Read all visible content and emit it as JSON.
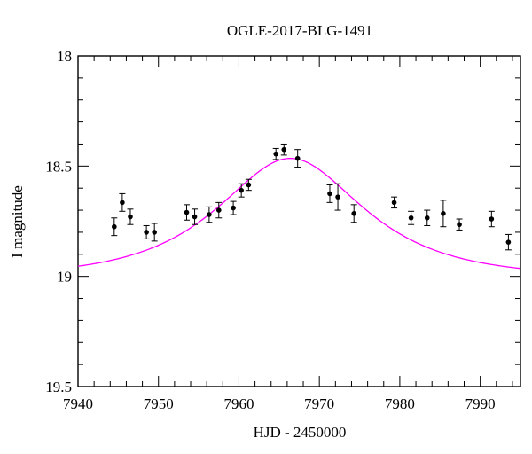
{
  "chart_data": {
    "type": "scatter",
    "title": "OGLE-2017-BLG-1491",
    "xlabel": "HJD - 2450000",
    "ylabel": "I magnitude",
    "xlim": [
      7940,
      7995
    ],
    "ylim": [
      19.5,
      18.0
    ],
    "y_inverted": true,
    "grid": false,
    "x_ticks": [
      {
        "value": 7940,
        "label": "7940"
      },
      {
        "value": 7950,
        "label": "7950"
      },
      {
        "value": 7960,
        "label": "7960"
      },
      {
        "value": 7970,
        "label": "7970"
      },
      {
        "value": 7980,
        "label": "7980"
      },
      {
        "value": 7990,
        "label": "7990"
      }
    ],
    "y_ticks": [
      {
        "value": 18.0,
        "label": "18"
      },
      {
        "value": 18.5,
        "label": "18.5"
      },
      {
        "value": 19.0,
        "label": "19"
      },
      {
        "value": 19.5,
        "label": "19.5"
      }
    ],
    "series": [
      {
        "kind": "points-with-errorbars",
        "color": "#000000",
        "points": [
          {
            "x": 7944.5,
            "y": 18.775,
            "err": 0.04
          },
          {
            "x": 7945.5,
            "y": 18.665,
            "err": 0.04
          },
          {
            "x": 7946.5,
            "y": 18.73,
            "err": 0.035
          },
          {
            "x": 7948.5,
            "y": 18.8,
            "err": 0.03
          },
          {
            "x": 7949.5,
            "y": 18.8,
            "err": 0.04
          },
          {
            "x": 7953.5,
            "y": 18.71,
            "err": 0.035
          },
          {
            "x": 7954.5,
            "y": 18.73,
            "err": 0.035
          },
          {
            "x": 7956.3,
            "y": 18.72,
            "err": 0.035
          },
          {
            "x": 7957.5,
            "y": 18.7,
            "err": 0.035
          },
          {
            "x": 7959.3,
            "y": 18.69,
            "err": 0.03
          },
          {
            "x": 7960.3,
            "y": 18.61,
            "err": 0.03
          },
          {
            "x": 7961.2,
            "y": 18.585,
            "err": 0.025
          },
          {
            "x": 7964.6,
            "y": 18.445,
            "err": 0.025
          },
          {
            "x": 7965.6,
            "y": 18.425,
            "err": 0.025
          },
          {
            "x": 7967.3,
            "y": 18.465,
            "err": 0.04
          },
          {
            "x": 7971.3,
            "y": 18.625,
            "err": 0.04
          },
          {
            "x": 7972.3,
            "y": 18.64,
            "err": 0.06
          },
          {
            "x": 7974.3,
            "y": 18.715,
            "err": 0.04
          },
          {
            "x": 7979.3,
            "y": 18.665,
            "err": 0.025
          },
          {
            "x": 7981.4,
            "y": 18.735,
            "err": 0.03
          },
          {
            "x": 7983.4,
            "y": 18.735,
            "err": 0.035
          },
          {
            "x": 7985.4,
            "y": 18.715,
            "err": 0.06
          },
          {
            "x": 7987.4,
            "y": 18.765,
            "err": 0.025
          },
          {
            "x": 7991.4,
            "y": 18.74,
            "err": 0.035
          },
          {
            "x": 7993.5,
            "y": 18.845,
            "err": 0.035
          }
        ]
      },
      {
        "kind": "model-curve",
        "color": "#ff00ff",
        "model": {
          "t0": 7966.4,
          "tE": 13.0,
          "u0": 0.72,
          "mag_at_peak": 18.465,
          "x_start": 7940,
          "x_end": 7995
        }
      }
    ]
  }
}
